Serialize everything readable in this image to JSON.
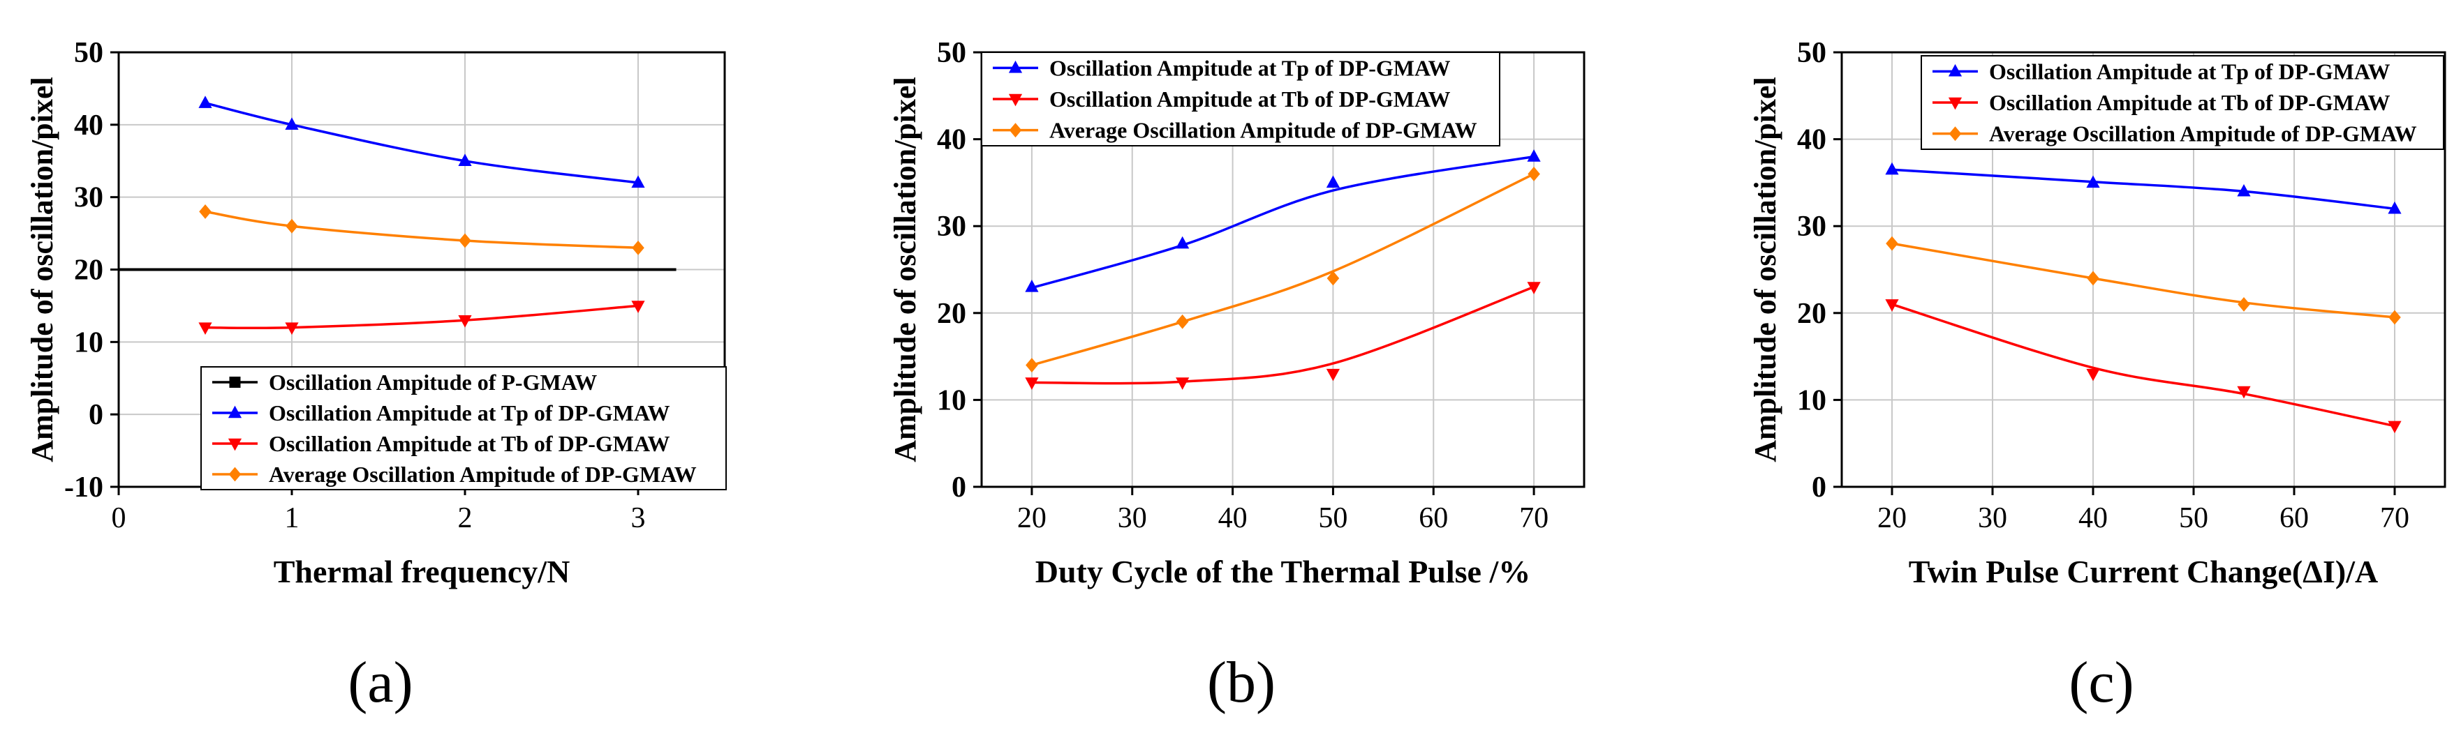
{
  "chart_data": [
    {
      "type": "line",
      "caption": "(a)",
      "xlabel": "Thermal frequency/N",
      "ylabel": "Amplitude of oscillation/pixel",
      "xlim": [
        0,
        3.5
      ],
      "ylim": [
        -10,
        50
      ],
      "xticks": [
        0,
        1,
        2,
        3
      ],
      "yticks": [
        -10,
        0,
        10,
        20,
        30,
        40,
        50
      ],
      "grid": true,
      "legend_position": "bottom-right",
      "series": [
        {
          "name": "Oscillation Ampitude of P-GMAW",
          "color": "#000000",
          "marker": "square",
          "style": "hline",
          "x": [
            0,
            3.22
          ],
          "y": [
            20,
            20
          ]
        },
        {
          "name": "Oscillation Ampitude at Tp of DP-GMAW",
          "color": "#0000ff",
          "marker": "triangle-up",
          "x": [
            0.5,
            1,
            2,
            3
          ],
          "y": [
            43,
            40,
            35,
            32
          ]
        },
        {
          "name": "Oscillation Ampitude at Tb of DP-GMAW",
          "color": "#ff0000",
          "marker": "triangle-down",
          "x": [
            0.5,
            1,
            2,
            3
          ],
          "y": [
            12,
            12,
            13,
            15
          ]
        },
        {
          "name": "Average Oscillation Ampitude of DP-GMAW",
          "color": "#ff8000",
          "marker": "diamond",
          "x": [
            0.5,
            1,
            2,
            3
          ],
          "y": [
            28,
            26,
            24,
            23
          ]
        }
      ]
    },
    {
      "type": "line",
      "caption": "(b)",
      "xlabel": "Duty Cycle of the Thermal Pulse /%",
      "ylabel": "Amplitude of oscillation/pixel",
      "xlim": [
        15,
        75
      ],
      "ylim": [
        0,
        50
      ],
      "xticks": [
        20,
        30,
        40,
        50,
        60,
        70
      ],
      "yticks": [
        0,
        10,
        20,
        30,
        40,
        50
      ],
      "grid": true,
      "legend_position": "top-left",
      "series": [
        {
          "name": "Oscillation Ampitude at Tp of DP-GMAW",
          "color": "#0000ff",
          "marker": "triangle-up",
          "x": [
            20,
            35,
            50,
            70
          ],
          "y": [
            23,
            28,
            35,
            38
          ],
          "fit": [
            22.9,
            27.8,
            34.1,
            38
          ]
        },
        {
          "name": "Oscillation Ampitude at Tb of DP-GMAW",
          "color": "#ff0000",
          "marker": "triangle-down",
          "x": [
            20,
            35,
            50,
            70
          ],
          "y": [
            12,
            12,
            13,
            23
          ],
          "fit": [
            12,
            12.1,
            14.2,
            23
          ]
        },
        {
          "name": "Average Oscillation Ampitude of DP-GMAW",
          "color": "#ff8000",
          "marker": "diamond",
          "x": [
            20,
            35,
            50,
            70
          ],
          "y": [
            14,
            19,
            24,
            36
          ],
          "fit": [
            14,
            19,
            24.8,
            36
          ]
        }
      ]
    },
    {
      "type": "line",
      "caption": "(c)",
      "xlabel": "Twin Pulse Current Change(ΔI)/A",
      "ylabel": "Amplitude of oscillation/pixel",
      "xlim": [
        15,
        75
      ],
      "ylim": [
        0,
        50
      ],
      "xticks": [
        20,
        30,
        40,
        50,
        60,
        70
      ],
      "yticks": [
        0,
        10,
        20,
        30,
        40,
        50
      ],
      "grid": true,
      "legend_position": "top-right",
      "series": [
        {
          "name": "Oscillation Ampitude at Tp of DP-GMAW",
          "color": "#0000ff",
          "marker": "triangle-up",
          "x": [
            20,
            40,
            55,
            70
          ],
          "y": [
            36.5,
            35,
            34,
            32
          ],
          "fit": [
            36.5,
            35.1,
            34,
            32
          ]
        },
        {
          "name": "Oscillation Ampitude at Tb of DP-GMAW",
          "color": "#ff0000",
          "marker": "triangle-down",
          "x": [
            20,
            40,
            55,
            70
          ],
          "y": [
            21,
            13,
            11,
            7
          ],
          "fit": [
            21,
            13.7,
            10.7,
            7
          ]
        },
        {
          "name": "Average Oscillation Ampitude of DP-GMAW",
          "color": "#ff8000",
          "marker": "diamond",
          "x": [
            20,
            40,
            55,
            70
          ],
          "y": [
            28,
            24,
            21,
            19.5
          ],
          "fit": [
            28,
            24,
            21.2,
            19.5
          ]
        }
      ]
    }
  ]
}
